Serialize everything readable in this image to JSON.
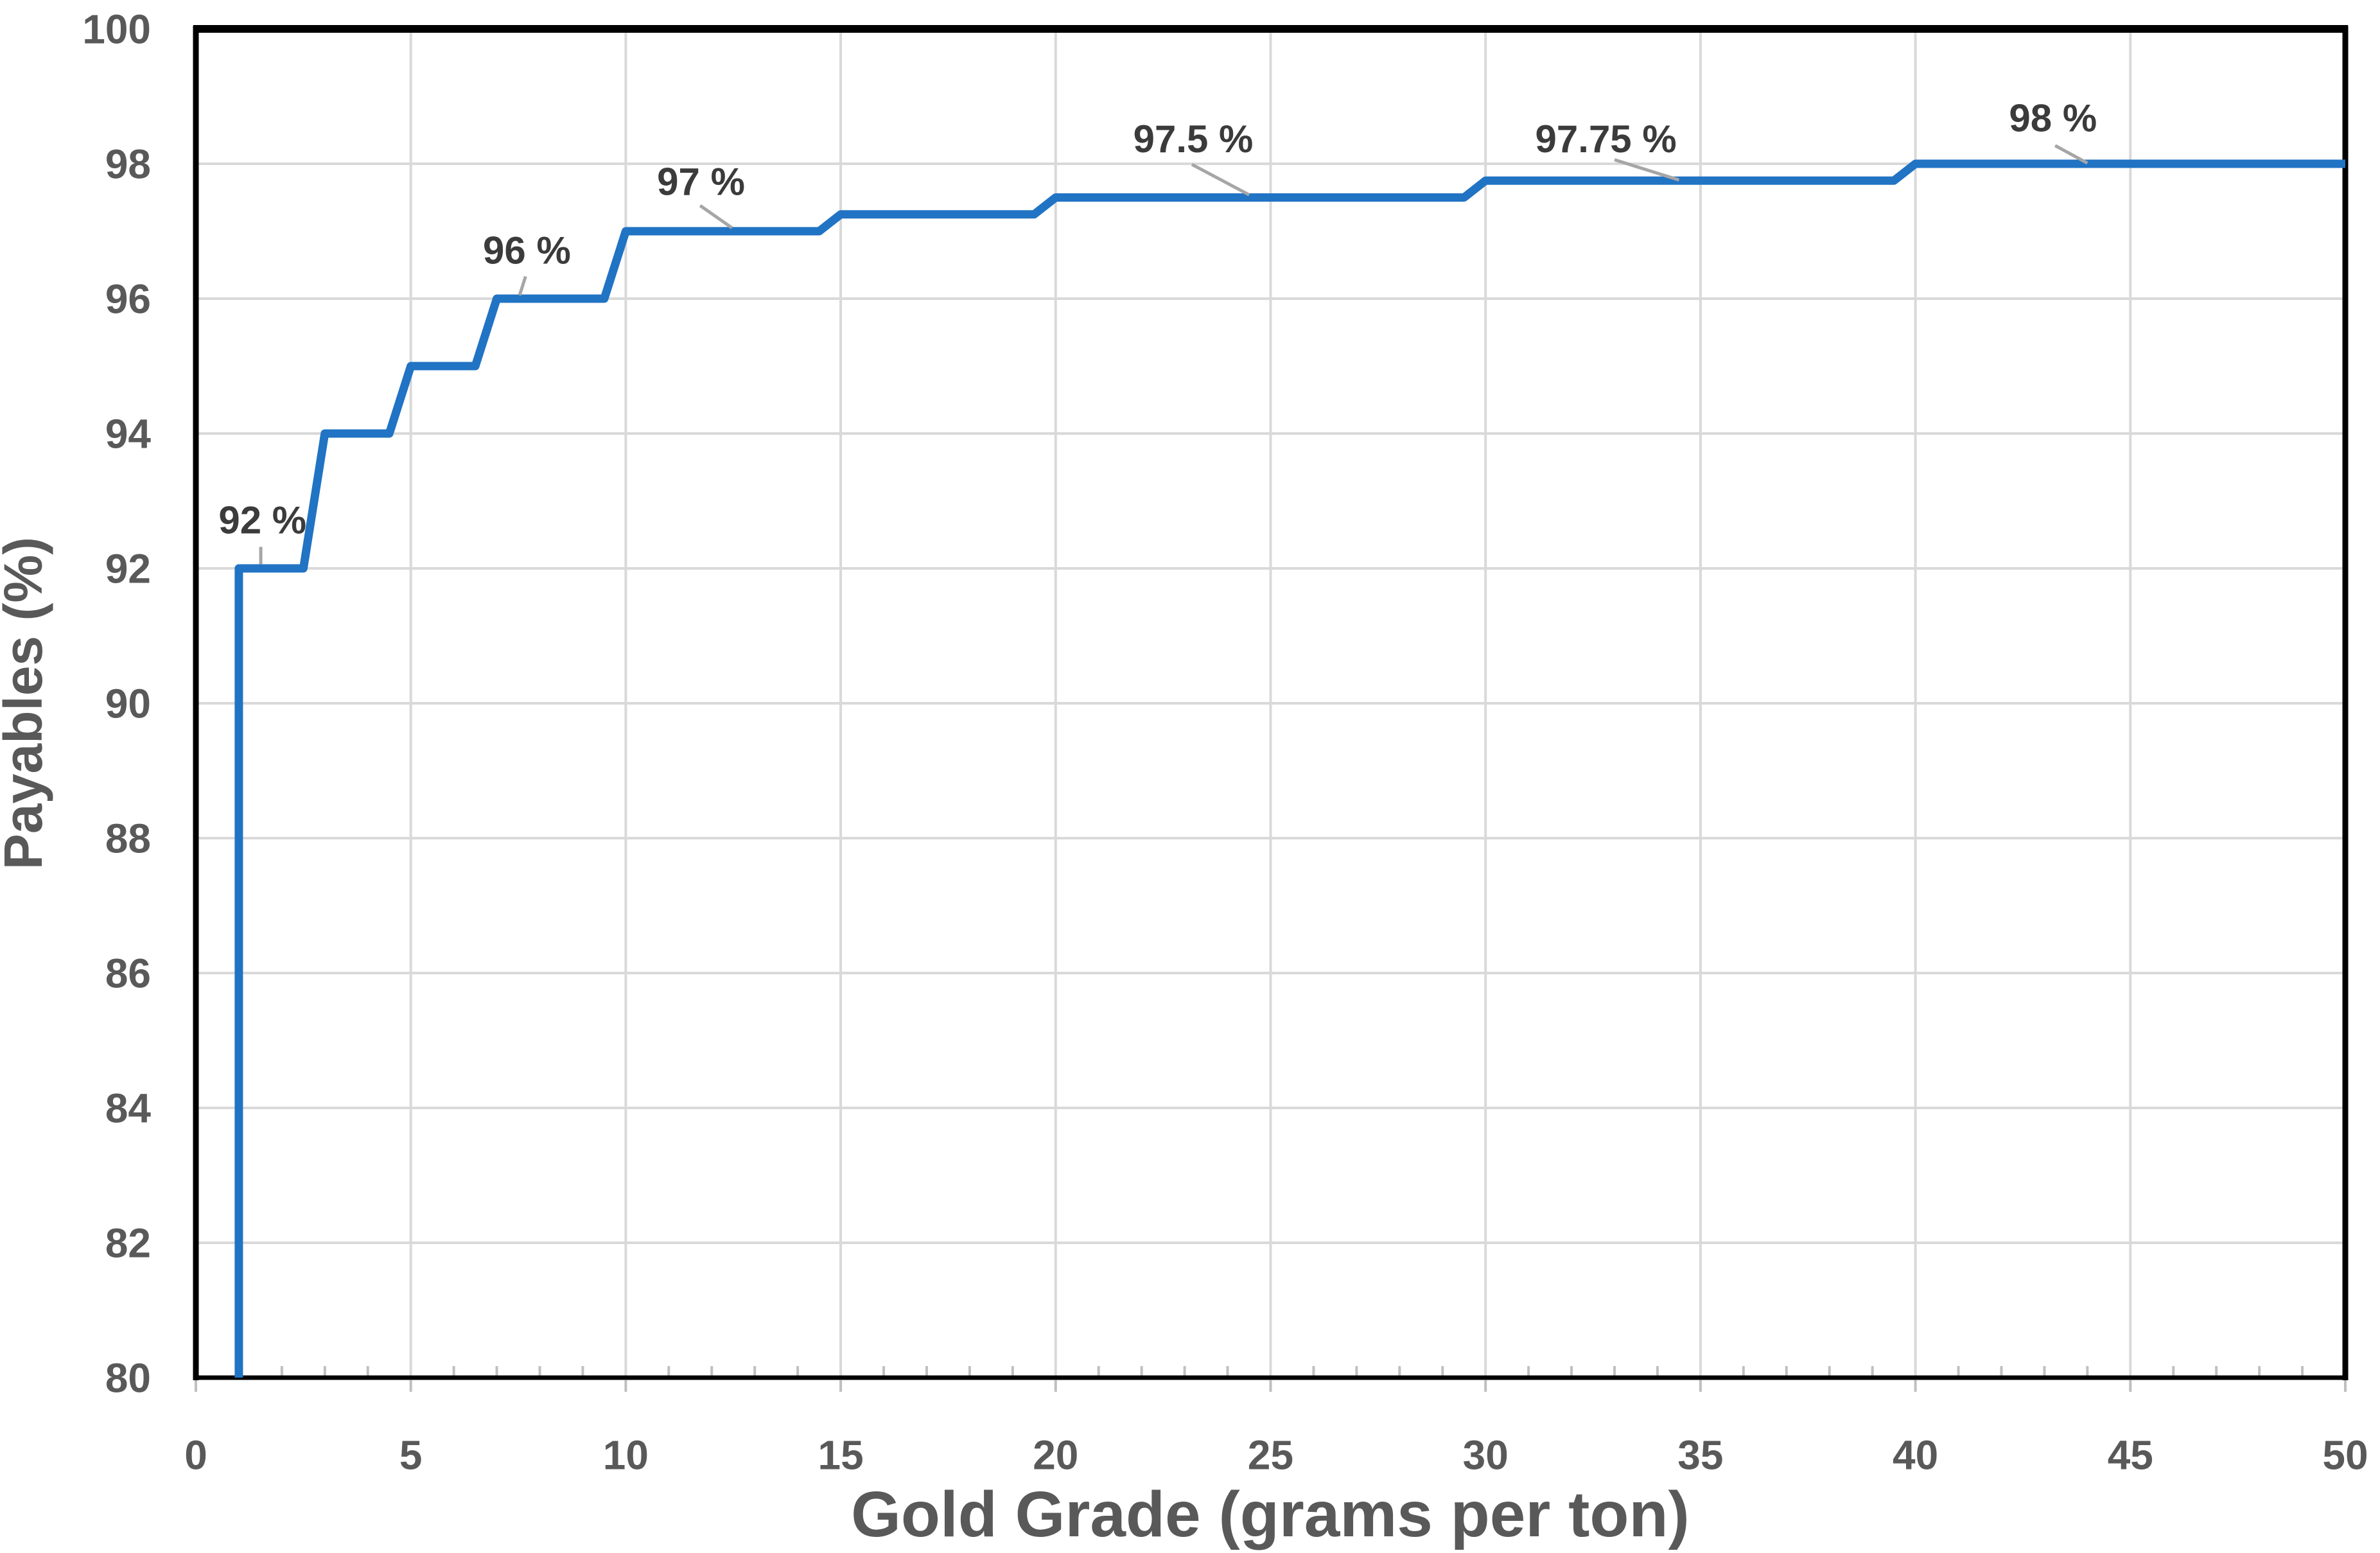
{
  "chart_data": {
    "type": "line",
    "subtype": "step",
    "title": "",
    "xlabel": "Gold Grade (grams per ton)",
    "ylabel": "Payables (%)",
    "xlim": [
      0,
      50
    ],
    "ylim": [
      80,
      100
    ],
    "x_ticks": [
      0,
      5,
      10,
      15,
      20,
      25,
      30,
      35,
      40,
      45,
      50
    ],
    "y_ticks": [
      80,
      82,
      84,
      86,
      88,
      90,
      92,
      94,
      96,
      98,
      100
    ],
    "x_minor_tick_step": 1,
    "grid": true,
    "legend": "none",
    "series": [
      {
        "name": "Payables",
        "color": "#2173C4",
        "points": [
          [
            1,
            80
          ],
          [
            1,
            92
          ],
          [
            2.5,
            92
          ],
          [
            3,
            94
          ],
          [
            4.5,
            94
          ],
          [
            5,
            95
          ],
          [
            6.5,
            95
          ],
          [
            7,
            96
          ],
          [
            9.5,
            96
          ],
          [
            10,
            97
          ],
          [
            14.5,
            97
          ],
          [
            15,
            97.25
          ],
          [
            19.5,
            97.25
          ],
          [
            20,
            97.5
          ],
          [
            29.5,
            97.5
          ],
          [
            30,
            97.75
          ],
          [
            39.5,
            97.75
          ],
          [
            40,
            98
          ],
          [
            50,
            98
          ]
        ]
      }
    ],
    "annotations": [
      {
        "label": "92 %",
        "x": 1.55,
        "y": 92.72,
        "leader": [
          [
            1.51,
            92.32
          ],
          [
            1.51,
            92.06
          ]
        ]
      },
      {
        "label": "96 %",
        "x": 7.7,
        "y": 96.72,
        "leader": [
          [
            7.67,
            96.33
          ],
          [
            7.53,
            96.05
          ]
        ]
      },
      {
        "label": "97 %",
        "x": 11.75,
        "y": 97.74,
        "leader": [
          [
            11.73,
            97.38
          ],
          [
            12.47,
            97.05
          ]
        ]
      },
      {
        "label": "97.5 %",
        "x": 23.2,
        "y": 98.37,
        "leader": [
          [
            23.17,
            97.99
          ],
          [
            24.5,
            97.54
          ]
        ]
      },
      {
        "label": "97.75 %",
        "x": 32.8,
        "y": 98.37,
        "leader": [
          [
            33.0,
            98.06
          ],
          [
            34.5,
            97.76
          ]
        ]
      },
      {
        "label": "98 %",
        "x": 43.2,
        "y": 98.68,
        "leader": [
          [
            43.25,
            98.27
          ],
          [
            44.0,
            98.01
          ]
        ]
      }
    ]
  },
  "style": {
    "line_color": "#2173C4",
    "gridline_color": "#d9d9d9",
    "tick_mark_color": "#bfbfbf",
    "border_color": "#000000",
    "tick_label_color": "#595959",
    "axis_title_color": "#595959",
    "data_label_color": "#3b3b3b",
    "leader_line_color": "#a6a6a6",
    "background_color": "#ffffff"
  }
}
